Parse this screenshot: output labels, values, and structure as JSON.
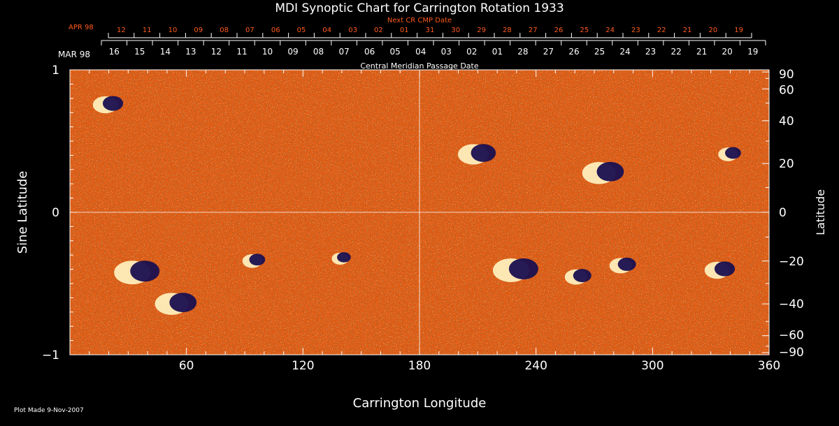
{
  "chart_data": {
    "type": "heatmap",
    "title": "MDI Synoptic Chart for Carrington Rotation 1933",
    "xlabel": "Carrington Longitude",
    "ylabel_left": "Sine Latitude",
    "ylabel_right": "Latitude",
    "xlim": [
      0,
      360
    ],
    "ylim": [
      -1,
      1
    ],
    "x_ticks": [
      60,
      120,
      180,
      240,
      300,
      360
    ],
    "y_ticks_left": [
      {
        "value": 1,
        "label": "1"
      },
      {
        "value": 0,
        "label": "0"
      },
      {
        "value": -1,
        "label": "−1"
      }
    ],
    "y_ticks_right": [
      {
        "lat": 90,
        "label": "90"
      },
      {
        "lat": 60,
        "label": "60"
      },
      {
        "lat": 40,
        "label": "40"
      },
      {
        "lat": 20,
        "label": "20"
      },
      {
        "lat": 0,
        "label": "0"
      },
      {
        "lat": -20,
        "label": "−20"
      },
      {
        "lat": -40,
        "label": "−40"
      },
      {
        "lat": -60,
        "label": "−60"
      },
      {
        "lat": -90,
        "label": "−90"
      }
    ],
    "cmp_axis": {
      "caption": "Central Meridian Passage Date",
      "month_label": "MAR 98",
      "days": [
        "16",
        "15",
        "14",
        "13",
        "12",
        "11",
        "10",
        "09",
        "08",
        "07",
        "06",
        "05",
        "04",
        "03",
        "02",
        "01",
        "28",
        "27",
        "26",
        "25",
        "24",
        "23",
        "22",
        "21",
        "20",
        "19"
      ]
    },
    "next_cr_axis": {
      "caption": "Next CR CMP Date",
      "month_label": "APR 98",
      "days": [
        "12",
        "11",
        "10",
        "09",
        "08",
        "07",
        "06",
        "05",
        "04",
        "03",
        "02",
        "01",
        "31",
        "30",
        "29",
        "28",
        "27",
        "26",
        "25",
        "24",
        "23",
        "22",
        "21",
        "20",
        "19"
      ]
    },
    "active_regions": [
      {
        "lon": 20,
        "lat": 49,
        "strength": 0.6
      },
      {
        "lon": 210,
        "lat": 24,
        "strength": 0.8
      },
      {
        "lon": 275,
        "lat": 16,
        "strength": 0.9
      },
      {
        "lon": 35,
        "lat": -25,
        "strength": 1.0
      },
      {
        "lon": 55,
        "lat": -40,
        "strength": 0.9
      },
      {
        "lon": 95,
        "lat": -20,
        "strength": 0.4
      },
      {
        "lon": 230,
        "lat": -24,
        "strength": 1.0
      },
      {
        "lon": 262,
        "lat": -27,
        "strength": 0.5
      },
      {
        "lon": 285,
        "lat": -22,
        "strength": 0.5
      },
      {
        "lon": 335,
        "lat": -24,
        "strength": 0.6
      },
      {
        "lon": 340,
        "lat": 24,
        "strength": 0.4
      },
      {
        "lon": 140,
        "lat": -19,
        "strength": 0.3
      }
    ],
    "colors": {
      "background": "#000000",
      "field_base": "#e85a10",
      "accent_text": "#ff5a1e",
      "positive": "#fff2c0",
      "negative": "#1a1050"
    },
    "grid": false,
    "footer": "Plot Made  9-Nov-2007"
  }
}
